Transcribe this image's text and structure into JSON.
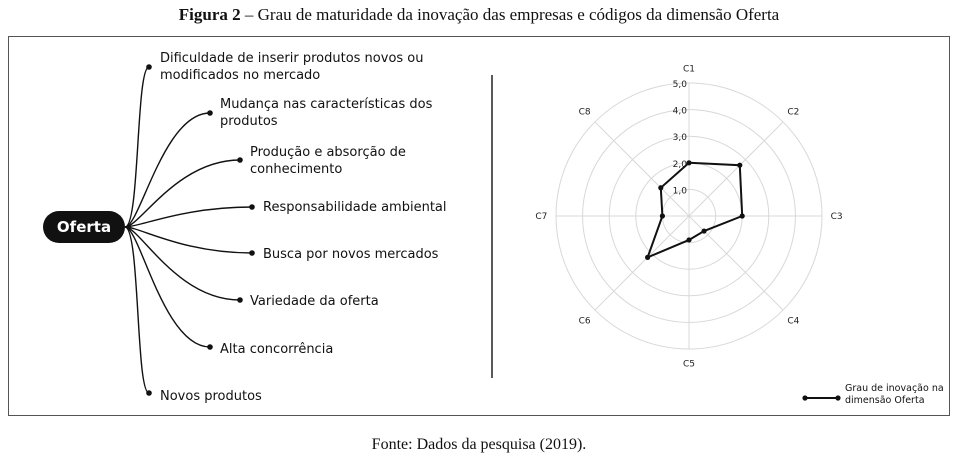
{
  "caption": {
    "prefix": "Figura 2",
    "rest": " – Grau de maturidade da inovação das empresas e códigos da dimensão Oferta"
  },
  "source": "Fonte: Dados da pesquisa (2019).",
  "mindmap": {
    "center": "Oferta",
    "branches": [
      {
        "label": "Dificuldade de inserir produtos novos ou modificados no mercado"
      },
      {
        "label": "Mudança nas características dos produtos"
      },
      {
        "label": "Produção e absorção de conhecimento"
      },
      {
        "label": "Responsabilidade ambiental"
      },
      {
        "label": "Busca por novos mercados"
      },
      {
        "label": "Variedade da oferta"
      },
      {
        "label": "Alta concorrência"
      },
      {
        "label": "Novos produtos"
      }
    ]
  },
  "chart_data": {
    "type": "radar",
    "axes": [
      "C1",
      "C2",
      "C3",
      "C4",
      "C5",
      "C6",
      "C7",
      "C8"
    ],
    "rlim": [
      0,
      5
    ],
    "ticks": [
      "1,0",
      "2,0",
      "3,0",
      "4,0",
      "5,0"
    ],
    "series": [
      {
        "name": "Grau de inovação na dimensão Oferta",
        "values": [
          2.0,
          2.7,
          2.0,
          0.8,
          0.9,
          2.2,
          1.0,
          1.5
        ]
      }
    ],
    "legend": {
      "label": "Grau de inovação na dimensão Oferta",
      "position": "bottom-right"
    },
    "grid": true
  }
}
